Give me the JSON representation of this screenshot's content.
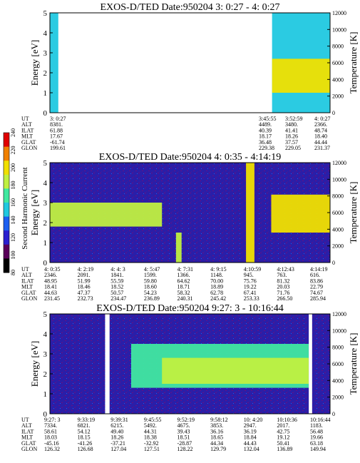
{
  "chart_data": [
    {
      "type": "heatmap",
      "title": "EXOS-D/TED   Date:950204  3: 0:27 - 4: 0:27",
      "ylabel": "Energy [eV]",
      "y2label": "Temperature [K]",
      "ylim": [
        0,
        5
      ],
      "y2lim": [
        0,
        12000
      ],
      "yticks": [
        "0",
        "1",
        "2",
        "3",
        "4",
        "5"
      ],
      "y2ticks": [
        "0",
        "2000",
        "4000",
        "6000",
        "8000",
        "10000",
        "12000"
      ],
      "ephemeris_labels": [
        "UT",
        "ALT",
        "ILAT",
        "MLT",
        "GLAT",
        "GLON"
      ],
      "ephemeris": [
        [
          "3: 0:27",
          "8381.",
          "61.88",
          "17.67",
          "-61.74",
          "199.61"
        ],
        [
          "3:45:55",
          "4489.",
          "40.39",
          "18.17",
          "36.48",
          "229.38"
        ],
        [
          "3:52:59",
          "3480.",
          "41.41",
          "18.26",
          "37.57",
          "229.05"
        ],
        [
          "4: 0:27",
          "2366.",
          "48.74",
          "18.40",
          "44.44",
          "231.37"
        ]
      ],
      "regions": [
        {
          "t0": 0.0,
          "t1": 0.03,
          "level": 0.4,
          "band": [
            0,
            5
          ]
        },
        {
          "t0": 0.793,
          "t1": 1.0,
          "level": 0.4,
          "band": [
            0,
            5
          ]
        },
        {
          "t0": 0.793,
          "t1": 1.0,
          "level": 0.75,
          "band": [
            1.0,
            2.7
          ]
        }
      ]
    },
    {
      "type": "heatmap",
      "title": "EXOS-D/TED   Date:950204  4: 0:35 - 4:14:19",
      "ylabel": "Energy [eV]",
      "y2label": "Temperature [K]",
      "ylim": [
        0,
        5
      ],
      "y2lim": [
        0,
        12000
      ],
      "yticks": [
        "0",
        "1",
        "2",
        "3",
        "4",
        "5"
      ],
      "y2ticks": [
        "0",
        "2000",
        "4000",
        "6000",
        "8000",
        "10000",
        "12000"
      ],
      "ephemeris_labels": [
        "UT",
        "ALT",
        "ILAT",
        "MLT",
        "GLAT",
        "GLON"
      ],
      "ephemeris": [
        [
          "4: 0:35",
          "2346.",
          "48.95",
          "18.41",
          "44.63",
          "231.45"
        ],
        [
          "4: 2:19",
          "2091.",
          "51.99",
          "18.46",
          "47.37",
          "232.73"
        ],
        [
          "4: 4: 3",
          "1841.",
          "55.59",
          "18.52",
          "50.57",
          "234.47"
        ],
        [
          "4: 5:47",
          "1599.",
          "59.80",
          "18.60",
          "54.23",
          "236.89"
        ],
        [
          "4: 7:31",
          "1366.",
          "64.62",
          "18.71",
          "58.32",
          "240.31"
        ],
        [
          "4: 9:15",
          "1148.",
          "70.00",
          "18.89",
          "62.78",
          "245.42"
        ],
        [
          "4:10:59",
          "945.",
          "75.76",
          "19.22",
          "67.41",
          "253.33"
        ],
        [
          "4:12:43",
          "763.",
          "81.32",
          "20.03",
          "71.76",
          "266.50"
        ],
        [
          "4:14:19",
          "616.",
          "83.86",
          "22.79",
          "74.67",
          "285.94"
        ]
      ],
      "regions": [
        {
          "t0": 0.0,
          "t1": 0.4,
          "level": 0.65,
          "band": [
            1.8,
            3.0
          ]
        },
        {
          "t0": 0.45,
          "t1": 0.47,
          "level": 0.65,
          "band": [
            0.0,
            1.5
          ]
        },
        {
          "t0": 0.7,
          "t1": 0.73,
          "level": 0.75,
          "band": [
            0.0,
            5.0
          ]
        },
        {
          "t0": 0.79,
          "t1": 1.0,
          "level": 0.8,
          "band": [
            1.5,
            3.4
          ]
        }
      ]
    },
    {
      "type": "heatmap",
      "title": "EXOS-D/TED   Date:950204  9:27: 3 - 10:16:44",
      "ylabel": "Energy [eV]",
      "y2label": "Temperature [K]",
      "ylim": [
        0,
        5
      ],
      "y2lim": [
        0,
        12000
      ],
      "yticks": [
        "0",
        "1",
        "2",
        "3",
        "4",
        "5"
      ],
      "y2ticks": [
        "0",
        "2000",
        "4000",
        "6000",
        "8000",
        "10000",
        "12000"
      ],
      "ephemeris_labels": [
        "UT",
        "ALT",
        "ILAT",
        "MLT",
        "GLAT",
        "GLON"
      ],
      "ephemeris": [
        [
          "9:27: 3",
          "7334.",
          "58.61",
          "18.03",
          "-45.16",
          "126.32"
        ],
        [
          "9:33:19",
          "6821.",
          "54.12",
          "18.15",
          "-41.26",
          "126.68"
        ],
        [
          "9:39:31",
          "6215.",
          "49.40",
          "18.26",
          "-37.21",
          "127.04"
        ],
        [
          "9:45:55",
          "5492.",
          "44.31",
          "18.38",
          "-32.92",
          "127.51"
        ],
        [
          "9:52:19",
          "4675.",
          "39.43",
          "18.51",
          "-28.87",
          "128.22"
        ],
        [
          "9:58:12",
          "3853.",
          "36.16",
          "18.65",
          "44.34",
          "129.79"
        ],
        [
          "10: 4:20",
          "2947.",
          "36.19",
          "18.84",
          "44.43",
          "132.04"
        ],
        [
          "10:10:36",
          "2017.",
          "42.75",
          "19.12",
          "50.41",
          "136.89"
        ],
        [
          "10:16:44",
          "1183.",
          "56.48",
          "19.66",
          "63.18",
          "149.94"
        ]
      ],
      "gaps": [
        [
          0.197,
          0.213
        ],
        [
          0.924,
          0.936
        ]
      ],
      "regions": [
        {
          "t0": 0.29,
          "t1": 0.924,
          "level": 0.55,
          "band": [
            1.3,
            3.5
          ]
        },
        {
          "t0": 0.4,
          "t1": 0.924,
          "level": 0.72,
          "band": [
            1.5,
            2.8
          ]
        }
      ]
    }
  ],
  "colorbar": {
    "label": "Second Harmonic Current",
    "range": [
      80,
      240
    ],
    "ticks": [
      "80",
      "100",
      "120",
      "140",
      "160",
      "180",
      "200",
      "220",
      "240"
    ],
    "colors": [
      "#000000",
      "#5a005a",
      "#2a20d0",
      "#1c5ff0",
      "#20c8e0",
      "#40e8a0",
      "#c0f040",
      "#f0e000",
      "#f08000",
      "#e00000"
    ]
  }
}
